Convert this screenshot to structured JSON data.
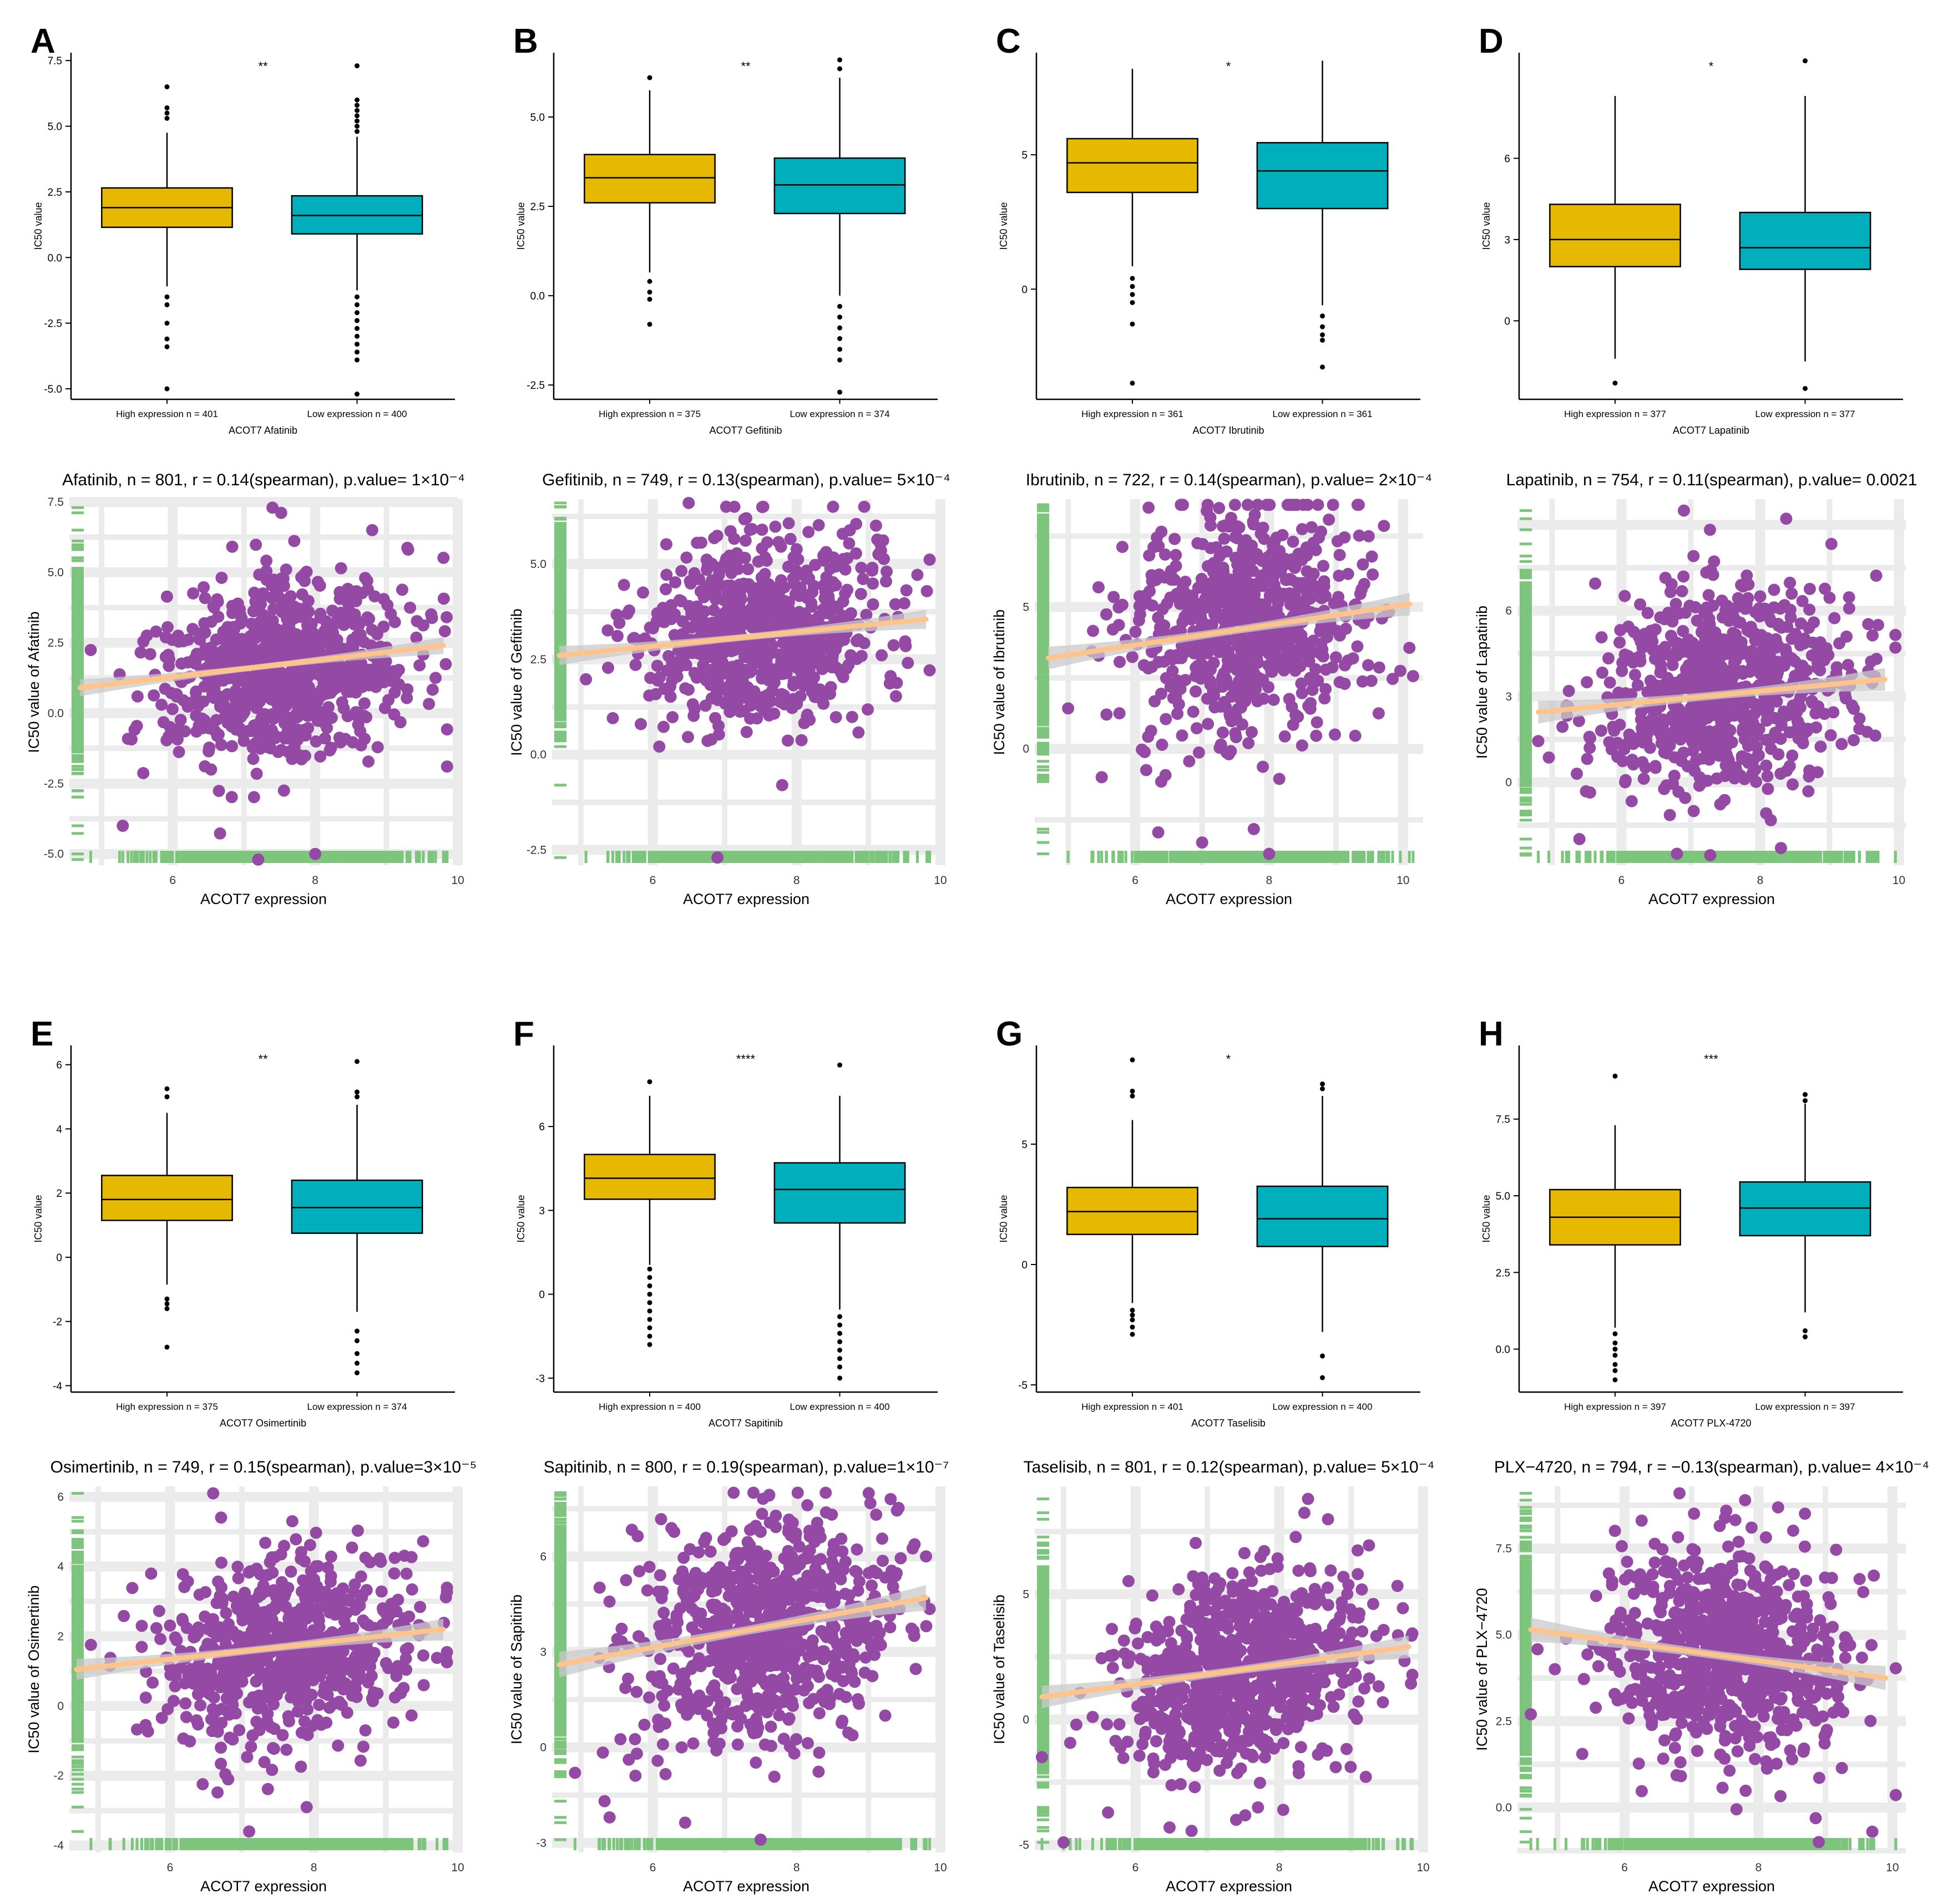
{
  "colors": {
    "high": "#E7B800",
    "low": "#00AFBB",
    "point": "#944AA4",
    "rug": "#7DC57D",
    "fit": "#FFC48C",
    "band": "#C9C9C9",
    "grid": "#EBEBEB"
  },
  "chart_data": [
    {
      "type": "box",
      "panel": "A",
      "drug": "Afatinib",
      "sig": "**",
      "xlabel": "ACOT7 Afatinib",
      "ylabel": "IC50 value",
      "ylim": [
        -5.4,
        7.8
      ],
      "yticks": [
        -5.0,
        -2.5,
        0.0,
        2.5,
        5.0,
        7.5
      ],
      "ytick_labels": [
        "-5.0",
        "-2.5",
        "0.0",
        "2.5",
        "5.0",
        "7.5"
      ],
      "groups": [
        {
          "label": "High expression n = 401",
          "q1": 1.15,
          "median": 1.9,
          "q3": 2.65,
          "wlo": -1.1,
          "whi": 4.75,
          "outliers": [
            5.3,
            5.5,
            5.7,
            6.5,
            -1.5,
            -1.8,
            -2.5,
            -3.1,
            -3.4,
            -5.0
          ]
        },
        {
          "label": "Low expression n = 400",
          "q1": 0.9,
          "median": 1.6,
          "q3": 2.35,
          "wlo": -1.25,
          "whi": 4.6,
          "outliers": [
            4.8,
            5.0,
            5.2,
            5.4,
            5.6,
            5.8,
            6.0,
            7.3,
            -1.5,
            -1.8,
            -2.1,
            -2.4,
            -2.7,
            -3.0,
            -3.3,
            -3.6,
            -3.9,
            -5.2
          ]
        }
      ]
    },
    {
      "type": "box",
      "panel": "B",
      "drug": "Gefitinib",
      "sig": "**",
      "xlabel": "ACOT7 Gefitinib",
      "ylabel": "IC50 value",
      "ylim": [
        -2.9,
        6.8
      ],
      "yticks": [
        -2.5,
        0.0,
        2.5,
        5.0
      ],
      "ytick_labels": [
        "-2.5",
        "0.0",
        "2.5",
        "5.0"
      ],
      "groups": [
        {
          "label": "High expression n = 375",
          "q1": 2.6,
          "median": 3.3,
          "q3": 3.95,
          "wlo": 0.65,
          "whi": 5.75,
          "outliers": [
            6.1,
            0.4,
            0.1,
            -0.1,
            -0.8
          ]
        },
        {
          "label": "Low expression n = 374",
          "q1": 2.3,
          "median": 3.1,
          "q3": 3.85,
          "wlo": 0.0,
          "whi": 6.1,
          "outliers": [
            6.35,
            6.6,
            -0.3,
            -0.6,
            -0.9,
            -1.2,
            -1.5,
            -1.8,
            -2.7
          ]
        }
      ]
    },
    {
      "type": "box",
      "panel": "C",
      "drug": "Ibrutinib",
      "sig": "*",
      "xlabel": "ACOT7 Ibrutinib",
      "ylabel": "IC50 value",
      "ylim": [
        -4.1,
        8.8
      ],
      "yticks": [
        0,
        5
      ],
      "ytick_labels": [
        "0",
        "5"
      ],
      "groups": [
        {
          "label": "High expression n = 361",
          "q1": 3.6,
          "median": 4.7,
          "q3": 5.6,
          "wlo": 0.85,
          "whi": 8.2,
          "outliers": [
            0.4,
            0.1,
            -0.2,
            -0.5,
            -1.3,
            -3.5
          ]
        },
        {
          "label": "Low expression n = 361",
          "q1": 3.0,
          "median": 4.4,
          "q3": 5.45,
          "wlo": -0.6,
          "whi": 8.5,
          "outliers": [
            -1.0,
            -1.4,
            -1.7,
            -1.9,
            -2.9
          ]
        }
      ]
    },
    {
      "type": "box",
      "panel": "D",
      "drug": "Lapatinib",
      "sig": "*",
      "xlabel": "ACOT7 Lapatinib",
      "ylabel": "IC50 value",
      "ylim": [
        -2.9,
        9.9
      ],
      "yticks": [
        0,
        3,
        6
      ],
      "ytick_labels": [
        "0",
        "3",
        "6"
      ],
      "groups": [
        {
          "label": "High expression n = 377",
          "q1": 2.0,
          "median": 3.0,
          "q3": 4.3,
          "wlo": -1.4,
          "whi": 8.3,
          "outliers": [
            -2.3
          ]
        },
        {
          "label": "Low expression n = 377",
          "q1": 1.9,
          "median": 2.7,
          "q3": 4.0,
          "wlo": -1.5,
          "whi": 8.3,
          "outliers": [
            9.6,
            -2.5
          ]
        }
      ]
    },
    {
      "type": "scatter",
      "panel": "A",
      "drug": "Afatinib",
      "title": "Afatinib, n = 801, r = 0.14(spearman), p.value= 1×10⁻⁴",
      "xlabel": "ACOT7 expression",
      "ylabel": "IC50 value of Afatinib",
      "xlim": [
        4.55,
        10.0
      ],
      "ylim": [
        -5.4,
        7.6
      ],
      "xticks": [
        6,
        8,
        10
      ],
      "xtick_labels": [
        "6",
        "8",
        "10"
      ],
      "yticks": [
        -5.0,
        -2.5,
        0.0,
        2.5,
        5.0,
        7.5
      ],
      "ytick_labels": [
        "-5.0",
        "-2.5",
        "0.0",
        "2.5",
        "5.0",
        "7.5"
      ],
      "n": 801,
      "x_center": 7.5,
      "x_sd": 0.85,
      "y_center": 1.6,
      "y_sd": 1.55,
      "fit": {
        "x": [
          4.7,
          9.8
        ],
        "y": [
          0.9,
          2.4
        ]
      },
      "band_width": 0.3,
      "outliers": [
        {
          "x": 5.3,
          "y": -4.0
        },
        {
          "x": 8.0,
          "y": -5.0
        },
        {
          "x": 8.8,
          "y": 6.5
        },
        {
          "x": 7.2,
          "y": -5.2
        },
        {
          "x": 7.4,
          "y": 7.3
        }
      ]
    },
    {
      "type": "scatter",
      "panel": "B",
      "drug": "Gefitinib",
      "title": "Gefitinib, n = 749, r = 0.13(spearman), p.value= 5×10⁻⁴",
      "xlabel": "ACOT7 expression",
      "ylabel": "IC50 value of Gefitinib",
      "xlim": [
        4.6,
        10.0
      ],
      "ylim": [
        -2.9,
        6.7
      ],
      "xticks": [
        6,
        8,
        10
      ],
      "xtick_labels": [
        "6",
        "8",
        "10"
      ],
      "yticks": [
        -2.5,
        0.0,
        2.5,
        5.0
      ],
      "ytick_labels": [
        "-2.5",
        "0.0",
        "2.5",
        "5.0"
      ],
      "n": 749,
      "x_center": 7.5,
      "x_sd": 0.85,
      "y_center": 3.2,
      "y_sd": 1.15,
      "fit": {
        "x": [
          4.7,
          9.8
        ],
        "y": [
          2.6,
          3.55
        ]
      },
      "band_width": 0.25,
      "outliers": [
        {
          "x": 6.9,
          "y": -2.7
        },
        {
          "x": 6.5,
          "y": 6.6
        },
        {
          "x": 7.3,
          "y": 6.2
        },
        {
          "x": 7.8,
          "y": -0.8
        }
      ]
    },
    {
      "type": "scatter",
      "panel": "C",
      "drug": "Ibrutinib",
      "title": "Ibrutinib, n = 722, r = 0.14(spearman), p.value= 2×10⁻⁴",
      "xlabel": "ACOT7 expression",
      "ylabel": "IC50 value of Ibrutinib",
      "xlim": [
        4.5,
        10.3
      ],
      "ylim": [
        -4.1,
        8.8
      ],
      "xticks": [
        6,
        8,
        10
      ],
      "xtick_labels": [
        "6",
        "8",
        "10"
      ],
      "yticks": [
        0,
        5
      ],
      "ytick_labels": [
        "0",
        "5"
      ],
      "n": 722,
      "x_center": 7.6,
      "x_sd": 0.85,
      "y_center": 4.3,
      "y_sd": 2.0,
      "fit": {
        "x": [
          4.7,
          10.1
        ],
        "y": [
          3.2,
          5.1
        ]
      },
      "band_width": 0.4,
      "outliers": [
        {
          "x": 7.0,
          "y": -3.3
        },
        {
          "x": 8.0,
          "y": -3.7
        },
        {
          "x": 6.2,
          "y": 8.5
        },
        {
          "x": 5.5,
          "y": -1.0
        },
        {
          "x": 9.4,
          "y": 6.5
        }
      ]
    },
    {
      "type": "scatter",
      "panel": "D",
      "drug": "Lapatinib",
      "title": "Lapatinib, n = 754, r = 0.11(spearman), p.value= 0.0021",
      "xlabel": "ACOT7 expression",
      "ylabel": "IC50 value of Lapatinib",
      "xlim": [
        4.5,
        10.1
      ],
      "ylim": [
        -2.9,
        9.9
      ],
      "xticks": [
        6,
        8,
        10
      ],
      "xtick_labels": [
        "6",
        "8",
        "10"
      ],
      "yticks": [
        0,
        3,
        6
      ],
      "ytick_labels": [
        "0",
        "3",
        "6"
      ],
      "n": 754,
      "x_center": 7.5,
      "x_sd": 0.85,
      "y_center": 3.2,
      "y_sd": 1.8,
      "fit": {
        "x": [
          4.8,
          9.8
        ],
        "y": [
          2.45,
          3.6
        ]
      },
      "band_width": 0.4,
      "outliers": [
        {
          "x": 6.9,
          "y": 9.5
        },
        {
          "x": 6.8,
          "y": -2.5
        },
        {
          "x": 8.3,
          "y": -2.3
        },
        {
          "x": 9.7,
          "y": 5.5
        }
      ]
    },
    {
      "type": "box",
      "panel": "E",
      "drug": "Osimertinib",
      "sig": "**",
      "xlabel": "ACOT7 Osimertinib",
      "ylabel": "IC50 value",
      "ylim": [
        -4.2,
        6.6
      ],
      "yticks": [
        -4,
        -2,
        0,
        2,
        4,
        6
      ],
      "ytick_labels": [
        "-4",
        "-2",
        "0",
        "2",
        "4",
        "6"
      ],
      "groups": [
        {
          "label": "High expression n = 375",
          "q1": 1.15,
          "median": 1.8,
          "q3": 2.55,
          "wlo": -0.85,
          "whi": 4.5,
          "outliers": [
            5.0,
            5.25,
            -1.3,
            -1.45,
            -1.6,
            -2.8
          ]
        },
        {
          "label": "Low expression n = 374",
          "q1": 0.75,
          "median": 1.55,
          "q3": 2.4,
          "wlo": -1.7,
          "whi": 4.75,
          "outliers": [
            5.0,
            5.15,
            6.1,
            -2.3,
            -2.6,
            -3.0,
            -3.3,
            -3.6
          ]
        }
      ]
    },
    {
      "type": "box",
      "panel": "F",
      "drug": "Sapitinib",
      "sig": "****",
      "xlabel": "ACOT7 Sapitinib",
      "ylabel": "IC50 value",
      "ylim": [
        -3.5,
        8.9
      ],
      "yticks": [
        -3,
        0,
        3,
        6
      ],
      "ytick_labels": [
        "-3",
        "0",
        "3",
        "6"
      ],
      "groups": [
        {
          "label": "High expression n = 400",
          "q1": 3.4,
          "median": 4.15,
          "q3": 5.0,
          "wlo": 1.05,
          "whi": 7.1,
          "outliers": [
            7.6,
            0.9,
            0.6,
            0.3,
            0.0,
            -0.3,
            -0.6,
            -0.9,
            -1.2,
            -1.5,
            -1.8
          ]
        },
        {
          "label": "Low expression n = 400",
          "q1": 2.55,
          "median": 3.75,
          "q3": 4.7,
          "wlo": -0.55,
          "whi": 7.1,
          "outliers": [
            8.2,
            -0.8,
            -1.1,
            -1.4,
            -1.7,
            -2.0,
            -2.3,
            -2.6,
            -3.0
          ]
        }
      ]
    },
    {
      "type": "box",
      "panel": "G",
      "drug": "Taselisib",
      "sig": "*",
      "xlabel": "ACOT7 Taselisib",
      "ylabel": "IC50 value",
      "ylim": [
        -5.3,
        9.1
      ],
      "yticks": [
        -5,
        0,
        5
      ],
      "ytick_labels": [
        "-5",
        "0",
        "5"
      ],
      "groups": [
        {
          "label": "High expression n = 401",
          "q1": 1.25,
          "median": 2.2,
          "q3": 3.2,
          "wlo": -1.6,
          "whi": 6.0,
          "outliers": [
            7.0,
            7.2,
            8.5,
            -1.9,
            -2.1,
            -2.3,
            -2.6,
            -2.9
          ]
        },
        {
          "label": "Low expression n = 400",
          "q1": 0.75,
          "median": 1.9,
          "q3": 3.25,
          "wlo": -2.8,
          "whi": 7.0,
          "outliers": [
            7.3,
            7.5,
            -3.8,
            -4.7
          ]
        }
      ]
    },
    {
      "type": "box",
      "panel": "H",
      "drug": "PLX-4720",
      "sig": "***",
      "xlabel": "ACOT7 PLX-4720",
      "ylabel": "IC50 value",
      "ylim": [
        -1.4,
        9.9
      ],
      "yticks": [
        0.0,
        2.5,
        5.0,
        7.5
      ],
      "ytick_labels": [
        "0.0",
        "2.5",
        "5.0",
        "7.5"
      ],
      "groups": [
        {
          "label": "High expression n = 397",
          "q1": 3.4,
          "median": 4.3,
          "q3": 5.2,
          "wlo": 0.7,
          "whi": 7.3,
          "outliers": [
            8.9,
            0.5,
            0.2,
            0.0,
            -0.2,
            -0.5,
            -0.7,
            -1.0
          ]
        },
        {
          "label": "Low expression n = 397",
          "q1": 3.7,
          "median": 4.6,
          "q3": 5.45,
          "wlo": 1.2,
          "whi": 8.0,
          "outliers": [
            8.1,
            8.3,
            0.6,
            0.4
          ]
        }
      ]
    },
    {
      "type": "scatter",
      "panel": "E",
      "drug": "Osimertinib",
      "title": "Osimertinib, n = 749, r = 0.15(spearman), p.value=3×10⁻⁵",
      "xlabel": "ACOT7 expression",
      "ylabel": "IC50 value of Osimertinib",
      "xlim": [
        4.6,
        10.0
      ],
      "ylim": [
        -4.2,
        6.3
      ],
      "xticks": [
        6,
        8,
        10
      ],
      "xtick_labels": [
        "6",
        "8",
        "10"
      ],
      "yticks": [
        -4,
        -2,
        0,
        2,
        4,
        6
      ],
      "ytick_labels": [
        "-4",
        "-2",
        "0",
        "2",
        "4",
        "6"
      ],
      "n": 749,
      "x_center": 7.6,
      "x_sd": 0.85,
      "y_center": 1.6,
      "y_sd": 1.3,
      "fit": {
        "x": [
          4.7,
          9.8
        ],
        "y": [
          1.05,
          2.2
        ]
      },
      "band_width": 0.3,
      "outliers": [
        {
          "x": 6.6,
          "y": 6.1
        },
        {
          "x": 7.1,
          "y": -3.6
        },
        {
          "x": 7.9,
          "y": -2.9
        },
        {
          "x": 7.7,
          "y": 5.3
        }
      ]
    },
    {
      "type": "scatter",
      "panel": "F",
      "drug": "Sapitinib",
      "title": "Sapitinib, n = 800, r = 0.19(spearman), p.value=1×10⁻⁷",
      "xlabel": "ACOT7 expression",
      "ylabel": "IC50 value of Sapitinib",
      "xlim": [
        4.6,
        10.0
      ],
      "ylim": [
        -3.3,
        8.2
      ],
      "xticks": [
        6,
        8,
        10
      ],
      "xtick_labels": [
        "6",
        "8",
        "10"
      ],
      "yticks": [
        -3,
        0,
        3,
        6
      ],
      "ytick_labels": [
        "-3",
        "0",
        "3",
        "6"
      ],
      "n": 800,
      "x_center": 7.6,
      "x_sd": 0.85,
      "y_center": 3.8,
      "y_sd": 1.7,
      "fit": {
        "x": [
          4.7,
          9.8
        ],
        "y": [
          2.6,
          4.7
        ]
      },
      "band_width": 0.4,
      "outliers": [
        {
          "x": 7.5,
          "y": -2.9
        },
        {
          "x": 7.4,
          "y": 8.0
        },
        {
          "x": 5.4,
          "y": -2.2
        },
        {
          "x": 9.8,
          "y": 6.0
        }
      ]
    },
    {
      "type": "scatter",
      "panel": "G",
      "drug": "Taselisib",
      "title": "Taselisib, n = 801, r = 0.12(spearman), p.value= 5×10⁻⁴",
      "xlabel": "ACOT7 expression",
      "ylabel": "IC50 value of Taselisib",
      "xlim": [
        4.6,
        10.0
      ],
      "ylim": [
        -5.3,
        9.3
      ],
      "xticks": [
        6,
        8,
        10
      ],
      "xtick_labels": [
        "6",
        "8",
        "10"
      ],
      "yticks": [
        -5,
        0,
        5
      ],
      "ytick_labels": [
        "-5",
        "0",
        "5"
      ],
      "n": 801,
      "x_center": 7.5,
      "x_sd": 0.85,
      "y_center": 2.0,
      "y_sd": 2.0,
      "fit": {
        "x": [
          4.7,
          9.8
        ],
        "y": [
          0.9,
          2.9
        ]
      },
      "band_width": 0.45,
      "outliers": [
        {
          "x": 8.4,
          "y": 8.8
        },
        {
          "x": 5.0,
          "y": -4.9
        },
        {
          "x": 4.7,
          "y": -1.5
        },
        {
          "x": 7.4,
          "y": -4.0
        }
      ]
    },
    {
      "type": "scatter",
      "panel": "H",
      "drug": "PLX-4720",
      "title": "PLX−4720, n = 794, r = −0.13(spearman), p.value= 4×10⁻⁴",
      "xlabel": "ACOT7 expression",
      "ylabel": "IC50 value of PLX−4720",
      "xlim": [
        4.4,
        10.2
      ],
      "ylim": [
        -1.3,
        9.3
      ],
      "xticks": [
        6,
        8,
        10
      ],
      "xtick_labels": [
        "6",
        "8",
        "10"
      ],
      "yticks": [
        0.0,
        2.5,
        5.0,
        7.5
      ],
      "ytick_labels": [
        "0.0",
        "2.5",
        "5.0",
        "7.5"
      ],
      "n": 794,
      "x_center": 7.5,
      "x_sd": 0.85,
      "y_center": 4.5,
      "y_sd": 1.5,
      "fit": {
        "x": [
          4.6,
          9.9
        ],
        "y": [
          5.15,
          3.75
        ]
      },
      "band_width": 0.35,
      "outliers": [
        {
          "x": 7.8,
          "y": 8.9
        },
        {
          "x": 9.7,
          "y": -0.7
        },
        {
          "x": 4.6,
          "y": 2.7
        },
        {
          "x": 8.9,
          "y": -1.0
        }
      ]
    }
  ]
}
